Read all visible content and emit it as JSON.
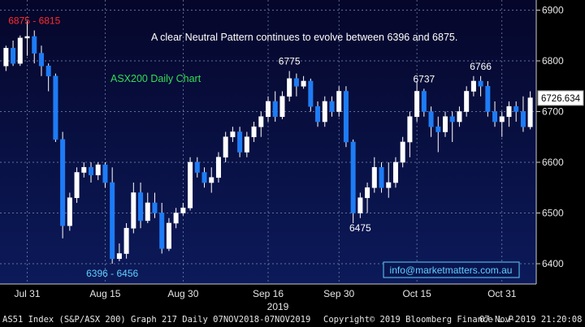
{
  "chart_data": {
    "type": "candlestick",
    "title": "ASX200 Daily Chart",
    "annotation": "A clear Neutral Pattern continues to evolve between 6396 and 6875.",
    "contact": "info@marketmatters.com.au",
    "ylim": [
      6360,
      6920
    ],
    "y_ticks": [
      6400,
      6500,
      6600,
      6700,
      6800,
      6900
    ],
    "last_price_label": "6726.634",
    "last_price": 6726.634,
    "x_ticks": [
      "Jul 31",
      "Aug 15",
      "Aug 30",
      "Sep 16",
      "Sep 30",
      "Oct 15",
      "Oct 31"
    ],
    "x_tick_index": [
      3,
      14,
      25,
      37,
      47,
      58,
      70
    ],
    "year_label": "2019",
    "level_labels": [
      {
        "text": "6875 - 6815",
        "index": 4,
        "color": "#ff2b2b"
      },
      {
        "text": "6396 - 6456",
        "index": 15,
        "color": "#5fd0ff"
      },
      {
        "text": "6775",
        "index": 40,
        "color": "#ffffff"
      },
      {
        "text": "6475",
        "index": 50,
        "color": "#ffffff"
      },
      {
        "text": "6737",
        "index": 59,
        "color": "#ffffff"
      },
      {
        "text": "6766",
        "index": 67,
        "color": "#ffffff"
      }
    ],
    "ohlc": [
      [
        6790,
        6830,
        6780,
        6825
      ],
      [
        6825,
        6840,
        6790,
        6795
      ],
      [
        6795,
        6850,
        6790,
        6845
      ],
      [
        6845,
        6878,
        6810,
        6848
      ],
      [
        6848,
        6860,
        6795,
        6815
      ],
      [
        6815,
        6830,
        6770,
        6790
      ],
      [
        6790,
        6795,
        6740,
        6770
      ],
      [
        6770,
        6775,
        6640,
        6645
      ],
      [
        6645,
        6660,
        6450,
        6475
      ],
      [
        6475,
        6540,
        6465,
        6530
      ],
      [
        6530,
        6590,
        6520,
        6580
      ],
      [
        6580,
        6600,
        6570,
        6590
      ],
      [
        6590,
        6600,
        6560,
        6575
      ],
      [
        6575,
        6600,
        6565,
        6595
      ],
      [
        6595,
        6600,
        6550,
        6560
      ],
      [
        6560,
        6590,
        6400,
        6410
      ],
      [
        6410,
        6440,
        6405,
        6420
      ],
      [
        6420,
        6480,
        6410,
        6470
      ],
      [
        6470,
        6560,
        6460,
        6540
      ],
      [
        6540,
        6560,
        6470,
        6485
      ],
      [
        6485,
        6540,
        6480,
        6520
      ],
      [
        6520,
        6540,
        6490,
        6500
      ],
      [
        6500,
        6520,
        6420,
        6430
      ],
      [
        6430,
        6490,
        6425,
        6480
      ],
      [
        6480,
        6510,
        6470,
        6500
      ],
      [
        6500,
        6520,
        6495,
        6510
      ],
      [
        6510,
        6610,
        6505,
        6600
      ],
      [
        6600,
        6610,
        6570,
        6580
      ],
      [
        6580,
        6590,
        6550,
        6560
      ],
      [
        6560,
        6590,
        6540,
        6570
      ],
      [
        6570,
        6620,
        6560,
        6610
      ],
      [
        6610,
        6660,
        6600,
        6650
      ],
      [
        6650,
        6670,
        6640,
        6660
      ],
      [
        6660,
        6670,
        6610,
        6620
      ],
      [
        6620,
        6660,
        6610,
        6650
      ],
      [
        6650,
        6680,
        6640,
        6670
      ],
      [
        6670,
        6700,
        6650,
        6690
      ],
      [
        6690,
        6730,
        6680,
        6720
      ],
      [
        6720,
        6740,
        6680,
        6690
      ],
      [
        6690,
        6740,
        6685,
        6730
      ],
      [
        6730,
        6780,
        6720,
        6765
      ],
      [
        6765,
        6775,
        6730,
        6750
      ],
      [
        6750,
        6770,
        6745,
        6760
      ],
      [
        6760,
        6765,
        6700,
        6710
      ],
      [
        6710,
        6720,
        6670,
        6680
      ],
      [
        6680,
        6730,
        6670,
        6720
      ],
      [
        6720,
        6730,
        6690,
        6700
      ],
      [
        6700,
        6750,
        6690,
        6740
      ],
      [
        6740,
        6750,
        6630,
        6640
      ],
      [
        6640,
        6645,
        6480,
        6500
      ],
      [
        6500,
        6540,
        6490,
        6530
      ],
      [
        6530,
        6560,
        6500,
        6550
      ],
      [
        6550,
        6610,
        6540,
        6590
      ],
      [
        6590,
        6600,
        6540,
        6550
      ],
      [
        6550,
        6600,
        6530,
        6560
      ],
      [
        6560,
        6610,
        6550,
        6600
      ],
      [
        6600,
        6650,
        6590,
        6640
      ],
      [
        6640,
        6700,
        6610,
        6690
      ],
      [
        6690,
        6760,
        6680,
        6740
      ],
      [
        6740,
        6745,
        6690,
        6700
      ],
      [
        6700,
        6710,
        6650,
        6670
      ],
      [
        6670,
        6690,
        6620,
        6660
      ],
      [
        6660,
        6700,
        6650,
        6690
      ],
      [
        6690,
        6700,
        6640,
        6680
      ],
      [
        6680,
        6710,
        6670,
        6700
      ],
      [
        6700,
        6750,
        6690,
        6740
      ],
      [
        6740,
        6770,
        6730,
        6760
      ],
      [
        6760,
        6770,
        6730,
        6750
      ],
      [
        6750,
        6760,
        6690,
        6700
      ],
      [
        6700,
        6720,
        6670,
        6680
      ],
      [
        6680,
        6700,
        6650,
        6690
      ],
      [
        6690,
        6720,
        6670,
        6710
      ],
      [
        6710,
        6720,
        6680,
        6700
      ],
      [
        6700,
        6730,
        6660,
        6670
      ],
      [
        6670,
        6740,
        6665,
        6727
      ]
    ]
  },
  "footer": {
    "left": "AS51 Index (S&P/ASX 200) Graph 217  Daily 07NOV2018-07NOV2019",
    "copyright": "Copyright© 2019 Bloomberg Finance L.P.",
    "timestamp": "07-Nov-2019 21:20:08"
  }
}
